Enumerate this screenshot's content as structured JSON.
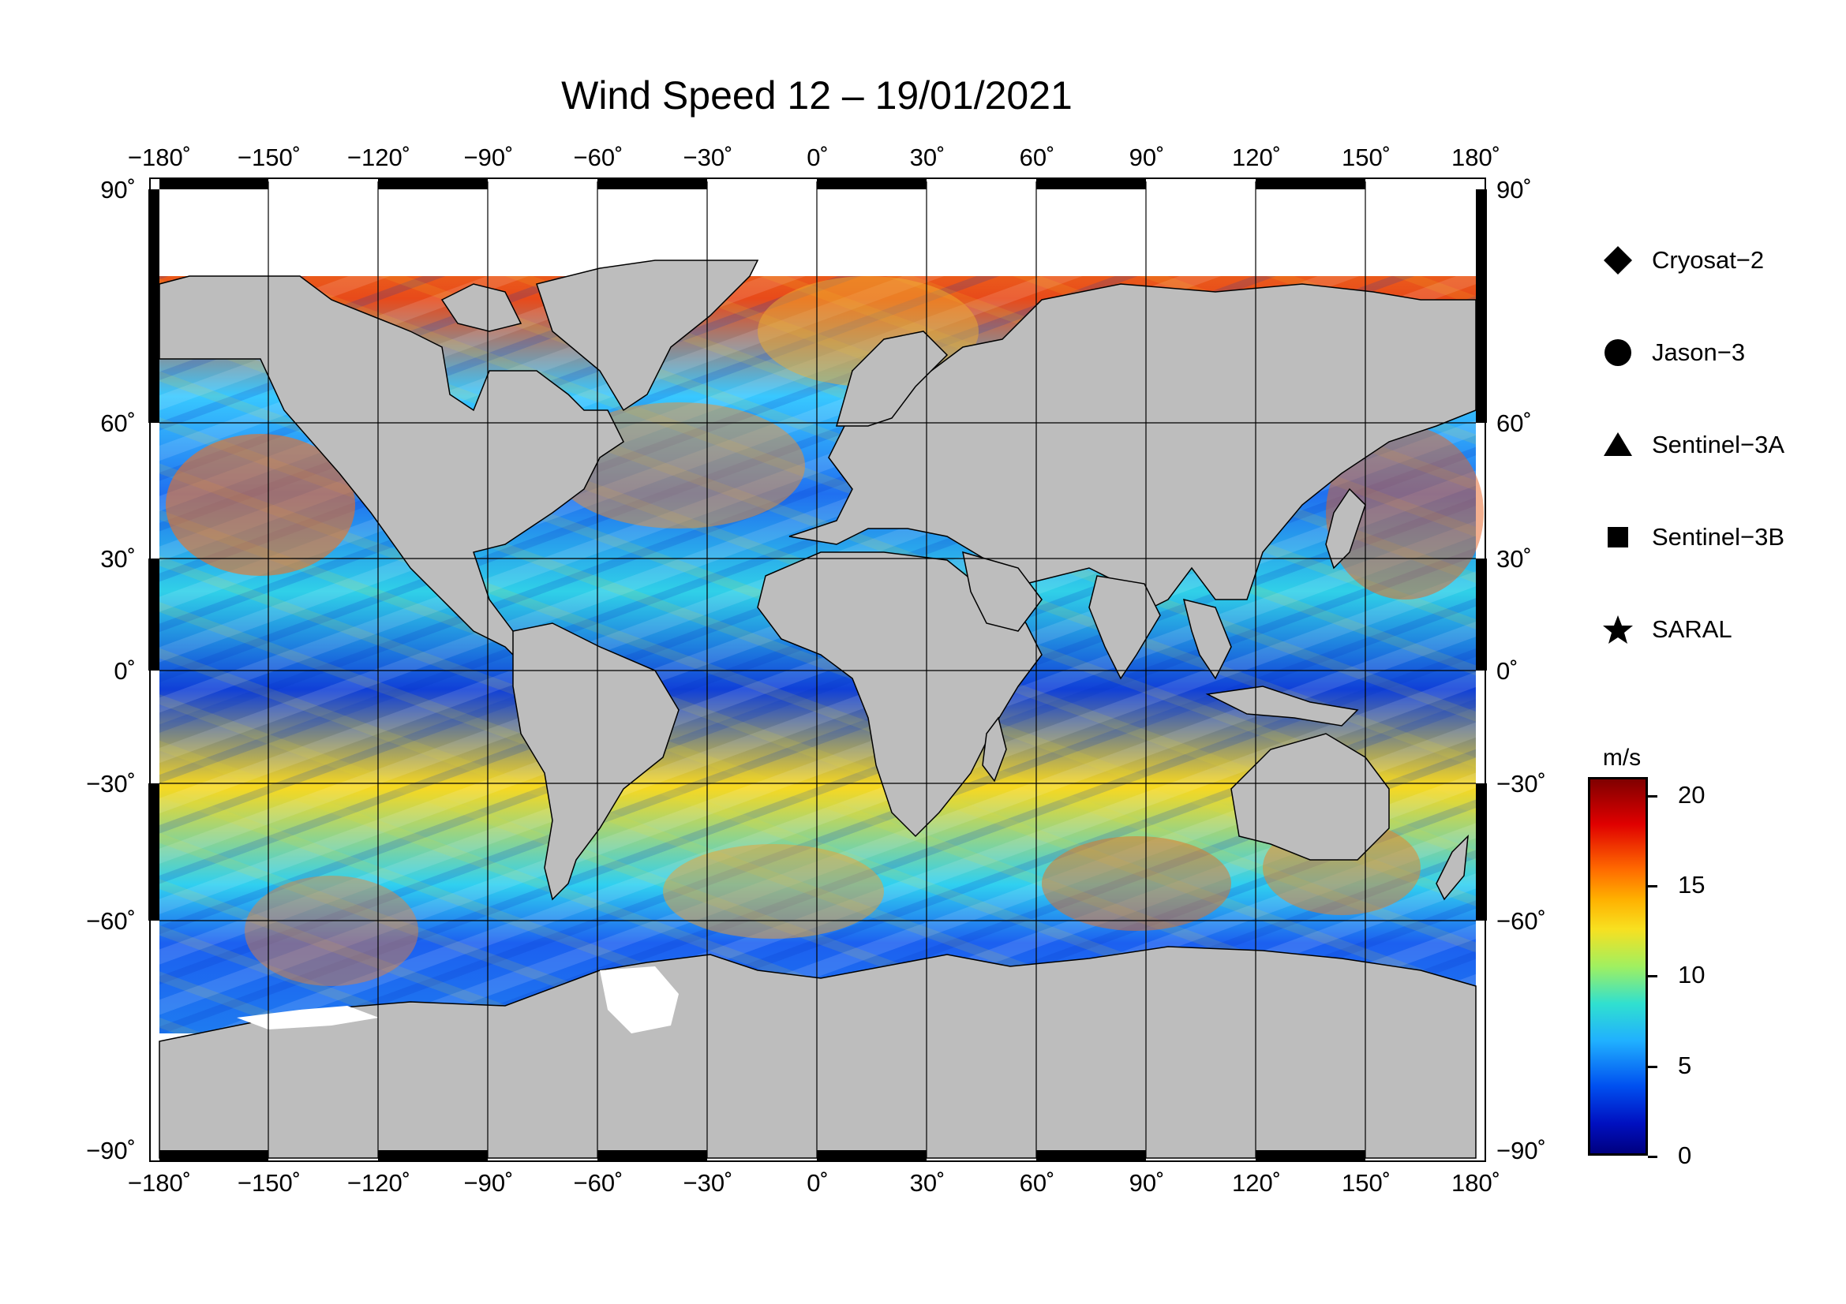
{
  "title": "Wind Speed 12 – 19/01/2021",
  "lon_labels": [
    "−180˚",
    "−150˚",
    "−120˚",
    "−90˚",
    "−60˚",
    "−30˚",
    "0˚",
    "30˚",
    "60˚",
    "90˚",
    "120˚",
    "150˚",
    "180˚"
  ],
  "lat_labels_left": [
    "90˚",
    "60˚",
    "30˚",
    "0˚",
    "−30˚",
    "−60˚",
    "−90˚"
  ],
  "lat_labels_right": [
    "90˚",
    "60˚",
    "30˚",
    "0˚",
    "−30˚",
    "−60˚",
    "−90˚"
  ],
  "lon_values": [
    -180,
    -150,
    -120,
    -90,
    -60,
    -30,
    0,
    30,
    60,
    90,
    120,
    150,
    180
  ],
  "lat_values": [
    90,
    60,
    30,
    0,
    -30,
    -60,
    -90
  ],
  "legend": [
    {
      "label": "Cryosat−2",
      "marker": "diamond-icon"
    },
    {
      "label": "Jason−3",
      "marker": "circle-icon"
    },
    {
      "label": "Sentinel−3A",
      "marker": "triangle-icon"
    },
    {
      "label": "Sentinel−3B",
      "marker": "square-icon"
    },
    {
      "label": "SARAL",
      "marker": "star-icon"
    }
  ],
  "colorbar": {
    "unit": "m/s",
    "ticks": [
      "20",
      "15",
      "10",
      "5",
      "0"
    ],
    "tick_values": [
      20,
      15,
      10,
      5,
      0
    ],
    "range": [
      0,
      21
    ]
  },
  "colors": {
    "land": "#bdbdbd",
    "ice": "#ffffff",
    "frame": "#000000"
  }
}
